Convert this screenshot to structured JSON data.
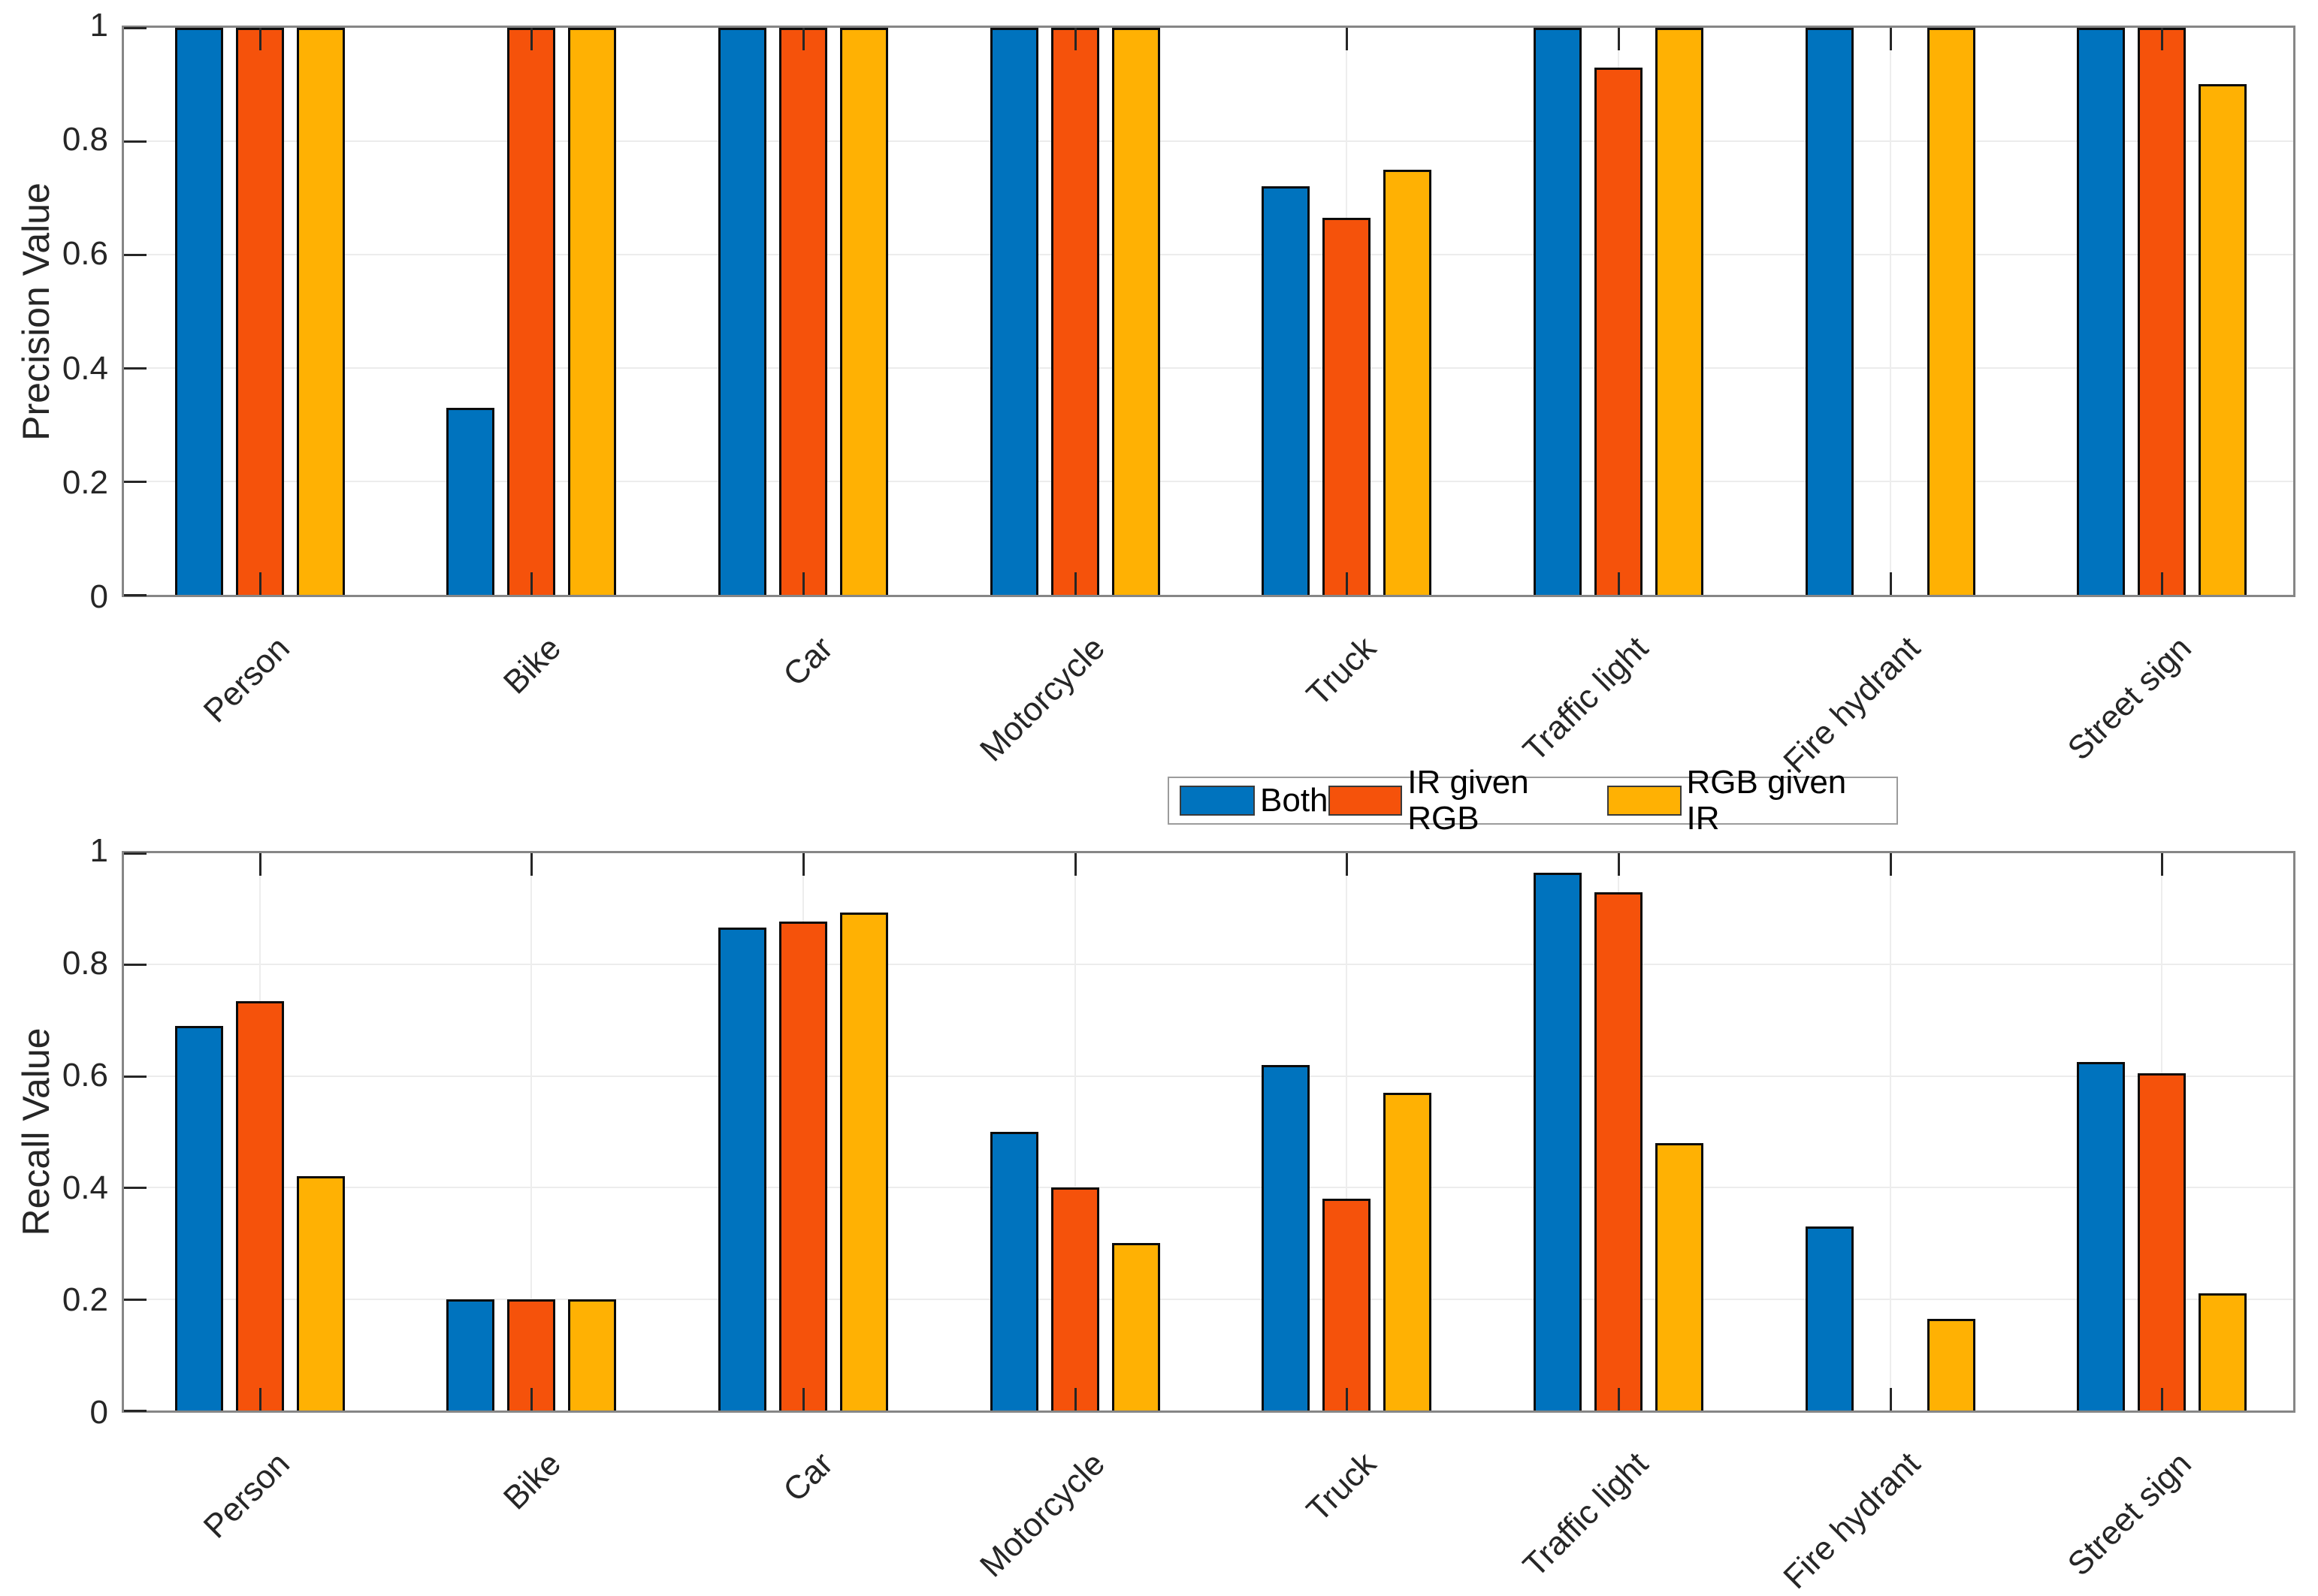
{
  "figure": {
    "background": "#FFFFFF",
    "style": "matlab-grouped-bar-figure"
  },
  "colors": {
    "both_blue": "#0073BE",
    "ir_given_rgb_orange": "#F5520B",
    "rgb_given_ir_yellow": "#FFB103",
    "bar_edge": "#0B0B0B",
    "grid": "#ECECEC",
    "axis": "#868686",
    "text": "#262626"
  },
  "legend": {
    "position": "between-subplots",
    "items": [
      {
        "label": "Both",
        "color": "#0073BE"
      },
      {
        "label": "IR given RGB",
        "color": "#F5520B"
      },
      {
        "label": "RGB given IR",
        "color": "#FFB103"
      }
    ]
  },
  "chart_data": [
    {
      "type": "bar",
      "title": "",
      "ylabel": "Precision Value",
      "xlabel": "",
      "ylim": [
        0,
        1
      ],
      "ytick_labels": [
        "0",
        "0.2",
        "0.4",
        "0.6",
        "0.8",
        "1"
      ],
      "grid": true,
      "xtick_rotation": 45,
      "categories": [
        "Person",
        "Bike",
        "Car",
        "Motorcycle",
        "Truck",
        "Traffic light",
        "Fire hydrant",
        "Street sign"
      ],
      "series": [
        {
          "name": "Both",
          "color": "#0073BE",
          "values": [
            1,
            0.33,
            1,
            1,
            0.72,
            1,
            1,
            1
          ]
        },
        {
          "name": "IR given RGB",
          "color": "#F5520B",
          "values": [
            1,
            1,
            1,
            1,
            0.665,
            0.93,
            null,
            1
          ]
        },
        {
          "name": "RGB given IR",
          "color": "#FFB103",
          "values": [
            1,
            1,
            1,
            1,
            0.75,
            1,
            1,
            0.9
          ]
        }
      ]
    },
    {
      "type": "bar",
      "title": "",
      "ylabel": "Recall Value",
      "xlabel": "",
      "ylim": [
        0,
        1
      ],
      "ytick_labels": [
        "0",
        "0.2",
        "0.4",
        "0.6",
        "0.8",
        "1"
      ],
      "grid": true,
      "xtick_rotation": 45,
      "categories": [
        "Person",
        "Bike",
        "Car",
        "Motorcycle",
        "Truck",
        "Traffic light",
        "Fire hydrant",
        "Street sign"
      ],
      "series": [
        {
          "name": "Both",
          "color": "#0073BE",
          "values": [
            0.69,
            0.2,
            0.867,
            0.5,
            0.62,
            0.965,
            0.33,
            0.625
          ]
        },
        {
          "name": "IR given RGB",
          "color": "#F5520B",
          "values": [
            0.735,
            0.2,
            0.878,
            0.4,
            0.38,
            0.93,
            null,
            0.605
          ]
        },
        {
          "name": "RGB given IR",
          "color": "#FFB103",
          "values": [
            0.42,
            0.2,
            0.893,
            0.3,
            0.57,
            0.48,
            0.165,
            0.21
          ]
        }
      ]
    }
  ]
}
